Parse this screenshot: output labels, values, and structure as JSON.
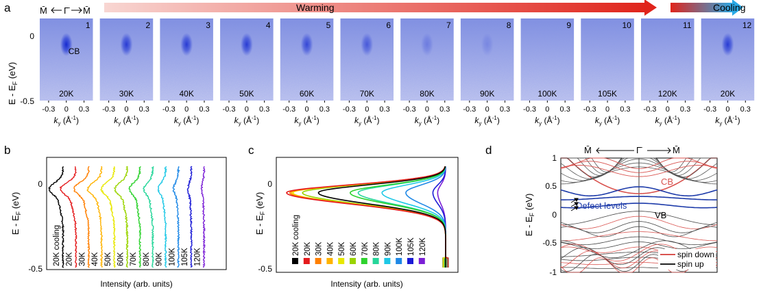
{
  "colors": {
    "cmap_low": "#b6bfe8",
    "cmap_high": "#1f33d6",
    "warming_start": "#f6c9c4",
    "warming_end": "#e0241b",
    "cooling_start": "#e0241b",
    "cooling_end": "#28a9e6",
    "temp": [
      "#000000",
      "#e41a1c",
      "#ff7f00",
      "#ffb300",
      "#e8e800",
      "#9ad400",
      "#2ed22e",
      "#26d69a",
      "#1ec8e6",
      "#1e88e6",
      "#1a1ad6",
      "#7b1fd6"
    ],
    "cb_band": "#d9534f",
    "defect": "#1c3aa9",
    "bulk_bands": "#3a3a3a"
  },
  "panels": {
    "a": "a",
    "b": "b",
    "c": "c",
    "d": "d"
  },
  "header": {
    "path_m1": "M̄",
    "path_g": "Γ̄",
    "path_m2": "M̄",
    "warming": "Warming",
    "cooling": "Cooling"
  },
  "panel_a": {
    "ylabel": "E - E_F (eV)",
    "yticks": [
      "0",
      "-0.5"
    ],
    "xlabel": "k_y (Å⁻¹)",
    "xticks": [
      "-0.3",
      "0",
      "0.3"
    ],
    "cb_label": "CB",
    "maps": [
      {
        "index": "1",
        "temp": "20K",
        "intensity": 1.0
      },
      {
        "index": "2",
        "temp": "30K",
        "intensity": 0.85
      },
      {
        "index": "3",
        "temp": "40K",
        "intensity": 0.85
      },
      {
        "index": "4",
        "temp": "50K",
        "intensity": 0.85
      },
      {
        "index": "5",
        "temp": "60K",
        "intensity": 0.75
      },
      {
        "index": "6",
        "temp": "70K",
        "intensity": 0.6
      },
      {
        "index": "7",
        "temp": "80K",
        "intensity": 0.3
      },
      {
        "index": "8",
        "temp": "90K",
        "intensity": 0.2
      },
      {
        "index": "9",
        "temp": "100K",
        "intensity": 0.0
      },
      {
        "index": "10",
        "temp": "105K",
        "intensity": 0.0
      },
      {
        "index": "11",
        "temp": "120K",
        "intensity": 0.0
      },
      {
        "index": "12",
        "temp": "20K",
        "intensity": 0.85
      }
    ]
  },
  "panel_b": {
    "ylabel": "E - E_F (eV)",
    "yticks": [
      "0",
      "-0.5"
    ],
    "xlabel": "Intensity (arb. units)",
    "curves": [
      {
        "label": "20K cooling",
        "peak": 0.85
      },
      {
        "label": "20K",
        "peak": 0.95
      },
      {
        "label": "30K",
        "peak": 0.9
      },
      {
        "label": "40K",
        "peak": 0.85
      },
      {
        "label": "50K",
        "peak": 0.8
      },
      {
        "label": "60K",
        "peak": 0.75
      },
      {
        "label": "70K",
        "peak": 0.65
      },
      {
        "label": "80K",
        "peak": 0.55
      },
      {
        "label": "90K",
        "peak": 0.45
      },
      {
        "label": "100K",
        "peak": 0.3
      },
      {
        "label": "105K",
        "peak": 0.2
      },
      {
        "label": "120K",
        "peak": 0.15
      }
    ]
  },
  "panel_c": {
    "ylabel": "E - E_F (eV)",
    "yticks": [
      "0",
      "-0.5"
    ],
    "xlabel": "Intensity (arb. units)",
    "legend": [
      "20K cooling",
      "20K",
      "30K",
      "40K",
      "50K",
      "60K",
      "70K",
      "80K",
      "90K",
      "100K",
      "105K",
      "120K"
    ],
    "peaks": [
      0.8,
      1.0,
      0.98,
      0.97,
      0.96,
      0.9,
      0.6,
      0.55,
      0.4,
      0.25,
      0.08,
      0.05
    ]
  },
  "panel_d": {
    "title_m1": "M̄",
    "title_g": "Γ̄",
    "title_m2": "M̄",
    "ylabel": "E - E_F (eV)",
    "yticks": [
      "1",
      "0.5",
      "0",
      "-0.5",
      "-1"
    ],
    "cb_label": "CB",
    "vb_label": "VB",
    "defect_label": "Defect levels",
    "legend": [
      {
        "label": "spin down",
        "color": "#d9534f"
      },
      {
        "label": "spin up",
        "color": "#222222"
      }
    ]
  }
}
